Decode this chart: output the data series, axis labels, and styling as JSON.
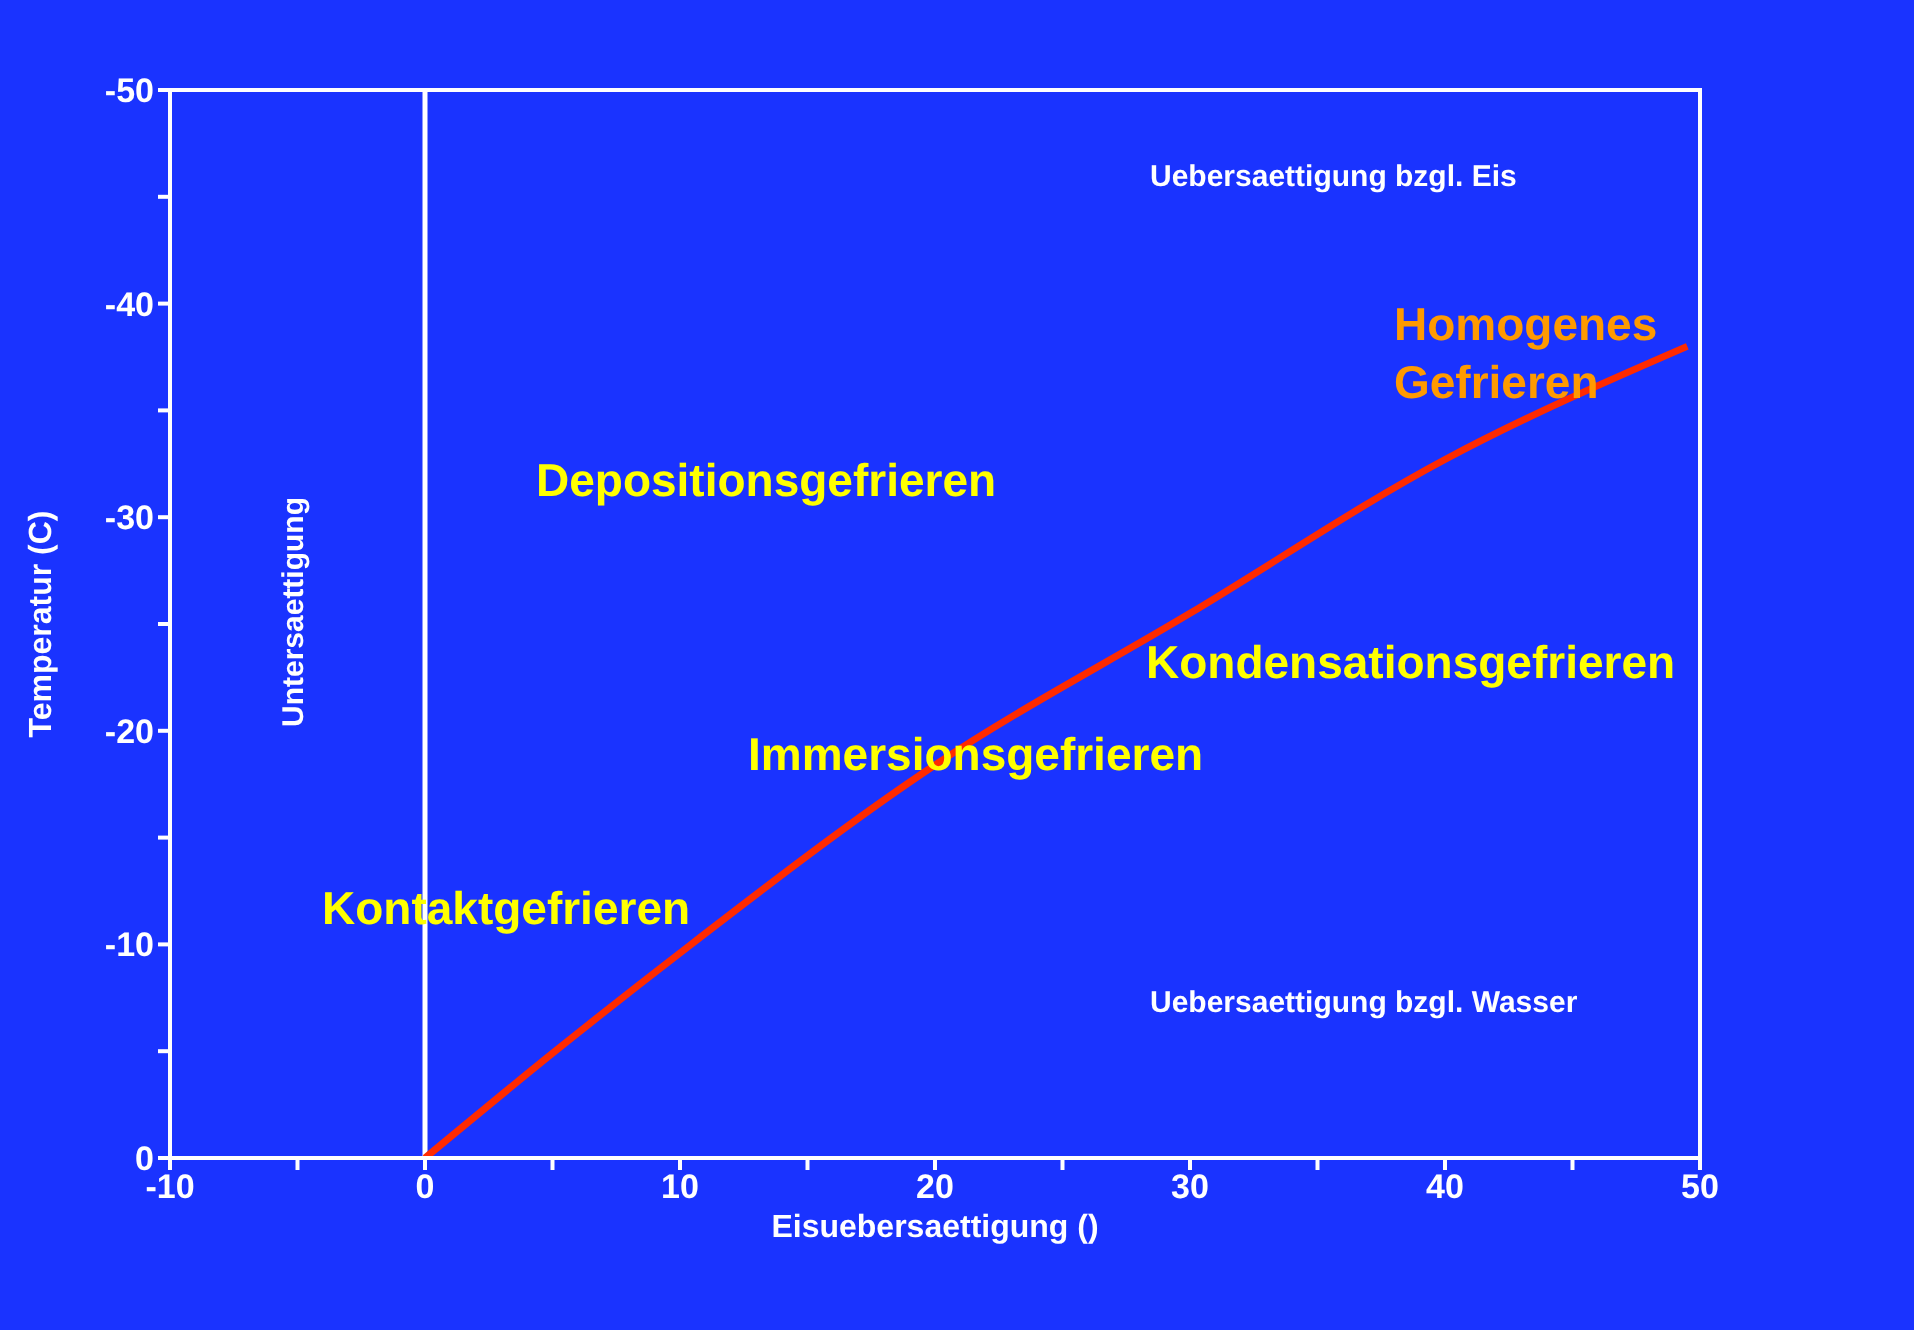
{
  "chart_data": {
    "type": "line",
    "xlabel": "Eisuebersaettigung ()",
    "ylabel": "Temperatur (C)",
    "x": [
      0,
      5,
      10,
      20,
      30,
      40,
      49.5
    ],
    "series": [
      {
        "color": "#ff2a00",
        "values": [
          0,
          -4.9,
          -9.6,
          -18.4,
          -25.5,
          -32.7,
          -38
        ]
      }
    ],
    "xlim": [
      -10,
      50
    ],
    "ylim": [
      0,
      -50
    ],
    "xticks": [
      -10,
      {
        "value": -5,
        "label": null
      },
      0,
      {
        "value": 5,
        "label": null
      },
      10,
      {
        "value": 15,
        "label": null
      },
      20,
      {
        "value": 25,
        "label": null
      },
      30,
      {
        "value": 35,
        "label": null
      },
      40,
      {
        "value": 45,
        "label": null
      },
      50
    ],
    "yticks": [
      0,
      {
        "value": -5,
        "label": null
      },
      -10,
      {
        "value": -15,
        "label": null
      },
      -20,
      {
        "value": -25,
        "label": null
      },
      -30,
      {
        "value": -35,
        "label": null
      },
      -40,
      {
        "value": -45,
        "label": null
      },
      -50
    ],
    "ref_lines": [
      {
        "axis": "x",
        "value": 0,
        "color": "#ffffff"
      }
    ],
    "marker": "none",
    "annotations": [
      "Uebersaettigung bzgl. Eis",
      "Homogenes Gefrieren",
      "Depositionsgefrieren",
      "Kondensationsgefrieren",
      "Immersionsgefrieren",
      "Kontaktgefrieren",
      "Uebersaettigung bzgl. Wasser",
      "Untersaettigung"
    ]
  }
}
